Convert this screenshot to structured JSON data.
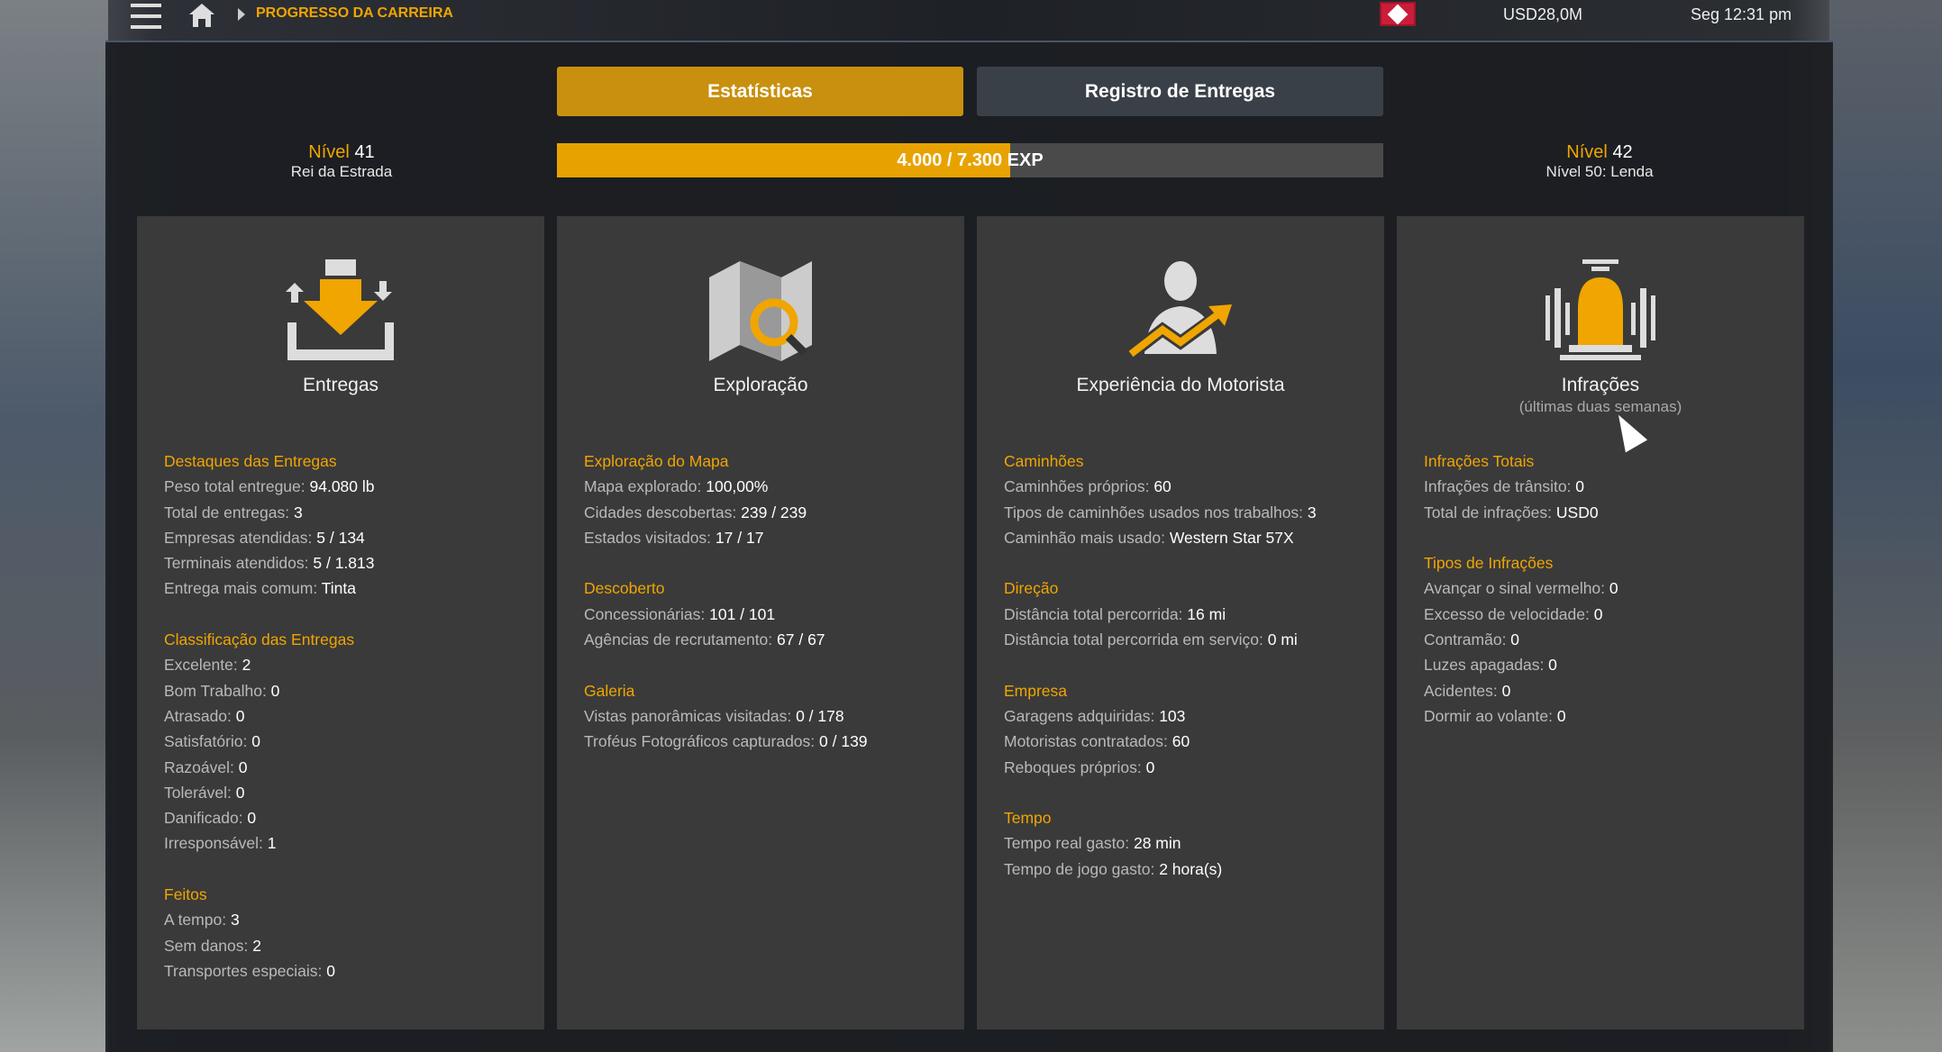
{
  "topbar": {
    "breadcrumb": "PROGRESSO DA CARREIRA",
    "money": "USD28,0M",
    "clock": "Seg 12:31 pm"
  },
  "tabs": [
    {
      "label": "Estatísticas",
      "active": true
    },
    {
      "label": "Registro de Entregas",
      "active": false
    }
  ],
  "level": {
    "current_label": "Nível",
    "current": "41",
    "current_title": "Rei da Estrada",
    "next_label": "Nível",
    "next": "42",
    "goal": "Nível 50: Lenda",
    "exp_text": "4.000 / 7.300",
    "exp_unit": "EXP",
    "exp_fraction": 0.548
  },
  "colors": {
    "accent": "#f0a500",
    "tab_active": "#c8900e",
    "card": "#3a3a3a"
  },
  "cards": [
    {
      "title": "Entregas",
      "icon": "delivery-icon",
      "sections": [
        {
          "heading": "Destaques das Entregas",
          "rows": [
            [
              "Peso total entregue: ",
              "94.080 lb"
            ],
            [
              "Total de entregas: ",
              "3"
            ],
            [
              "Empresas atendidas: ",
              "5 / 134"
            ],
            [
              "Terminais atendidos: ",
              "5 / 1.813"
            ],
            [
              "Entrega mais comum: ",
              "Tinta"
            ]
          ]
        },
        {
          "heading": "Classificação das Entregas",
          "rows": [
            [
              "Excelente: ",
              "2"
            ],
            [
              "Bom Trabalho: ",
              "0"
            ],
            [
              "Atrasado: ",
              "0"
            ],
            [
              "Satisfatório: ",
              "0"
            ],
            [
              "Razoável: ",
              "0"
            ],
            [
              "Tolerável: ",
              "0"
            ],
            [
              "Danificado: ",
              "0"
            ],
            [
              "Irresponsável: ",
              "1"
            ]
          ]
        },
        {
          "heading": "Feitos",
          "rows": [
            [
              "A tempo: ",
              "3"
            ],
            [
              "Sem danos: ",
              "2"
            ],
            [
              "Transportes especiais: ",
              "0"
            ]
          ]
        }
      ]
    },
    {
      "title": "Exploração",
      "icon": "map-search-icon",
      "sections": [
        {
          "heading": "Exploração do Mapa",
          "rows": [
            [
              "Mapa explorado: ",
              "100,00%"
            ],
            [
              "Cidades descobertas: ",
              "239 / 239"
            ],
            [
              "Estados visitados: ",
              "17 / 17"
            ]
          ]
        },
        {
          "heading": "Descoberto",
          "rows": [
            [
              "Concessionárias: ",
              "101 / 101"
            ],
            [
              "Agências de recrutamento: ",
              "67 / 67"
            ]
          ]
        },
        {
          "heading": "Galeria",
          "rows": [
            [
              "Vistas panorâmicas visitadas: ",
              "0 / 178"
            ],
            [
              "Troféus Fotográficos capturados: ",
              "0 / 139"
            ]
          ]
        }
      ]
    },
    {
      "title": "Experiência do Motorista",
      "icon": "driver-growth-icon",
      "sections": [
        {
          "heading": "Caminhões",
          "rows": [
            [
              "Caminhões próprios: ",
              "60"
            ],
            [
              "Tipos de caminhões usados nos trabalhos: ",
              "3"
            ],
            [
              "Caminhão mais usado: ",
              "Western Star 57X"
            ]
          ]
        },
        {
          "heading": "Direção",
          "rows": [
            [
              "Distância total percorrida: ",
              "16 mi"
            ],
            [
              "Distância total percorrida em serviço: ",
              "0 mi"
            ]
          ]
        },
        {
          "heading": "Empresa",
          "rows": [
            [
              "Garagens adquiridas: ",
              "103"
            ],
            [
              "Motoristas contratados: ",
              "60"
            ],
            [
              "Reboques próprios: ",
              "0"
            ]
          ]
        },
        {
          "heading": "Tempo",
          "rows": [
            [
              "Tempo real gasto: ",
              "28 min"
            ],
            [
              "Tempo de jogo gasto: ",
              "2 hora(s)"
            ]
          ]
        }
      ]
    },
    {
      "title": "Infrações",
      "subtitle": "(últimas duas semanas)",
      "icon": "siren-icon",
      "sections": [
        {
          "heading": "Infrações Totais",
          "rows": [
            [
              "Infrações de trânsito: ",
              "0"
            ],
            [
              "Total de infrações: ",
              "USD0"
            ]
          ]
        },
        {
          "heading": "Tipos de Infrações",
          "rows": [
            [
              "Avançar o sinal vermelho: ",
              "0"
            ],
            [
              "Excesso de velocidade: ",
              "0"
            ],
            [
              "Contramão: ",
              "0"
            ],
            [
              "Luzes apagadas: ",
              "0"
            ],
            [
              "Acidentes: ",
              "0"
            ],
            [
              "Dormir ao volante: ",
              "0"
            ]
          ]
        }
      ]
    }
  ]
}
